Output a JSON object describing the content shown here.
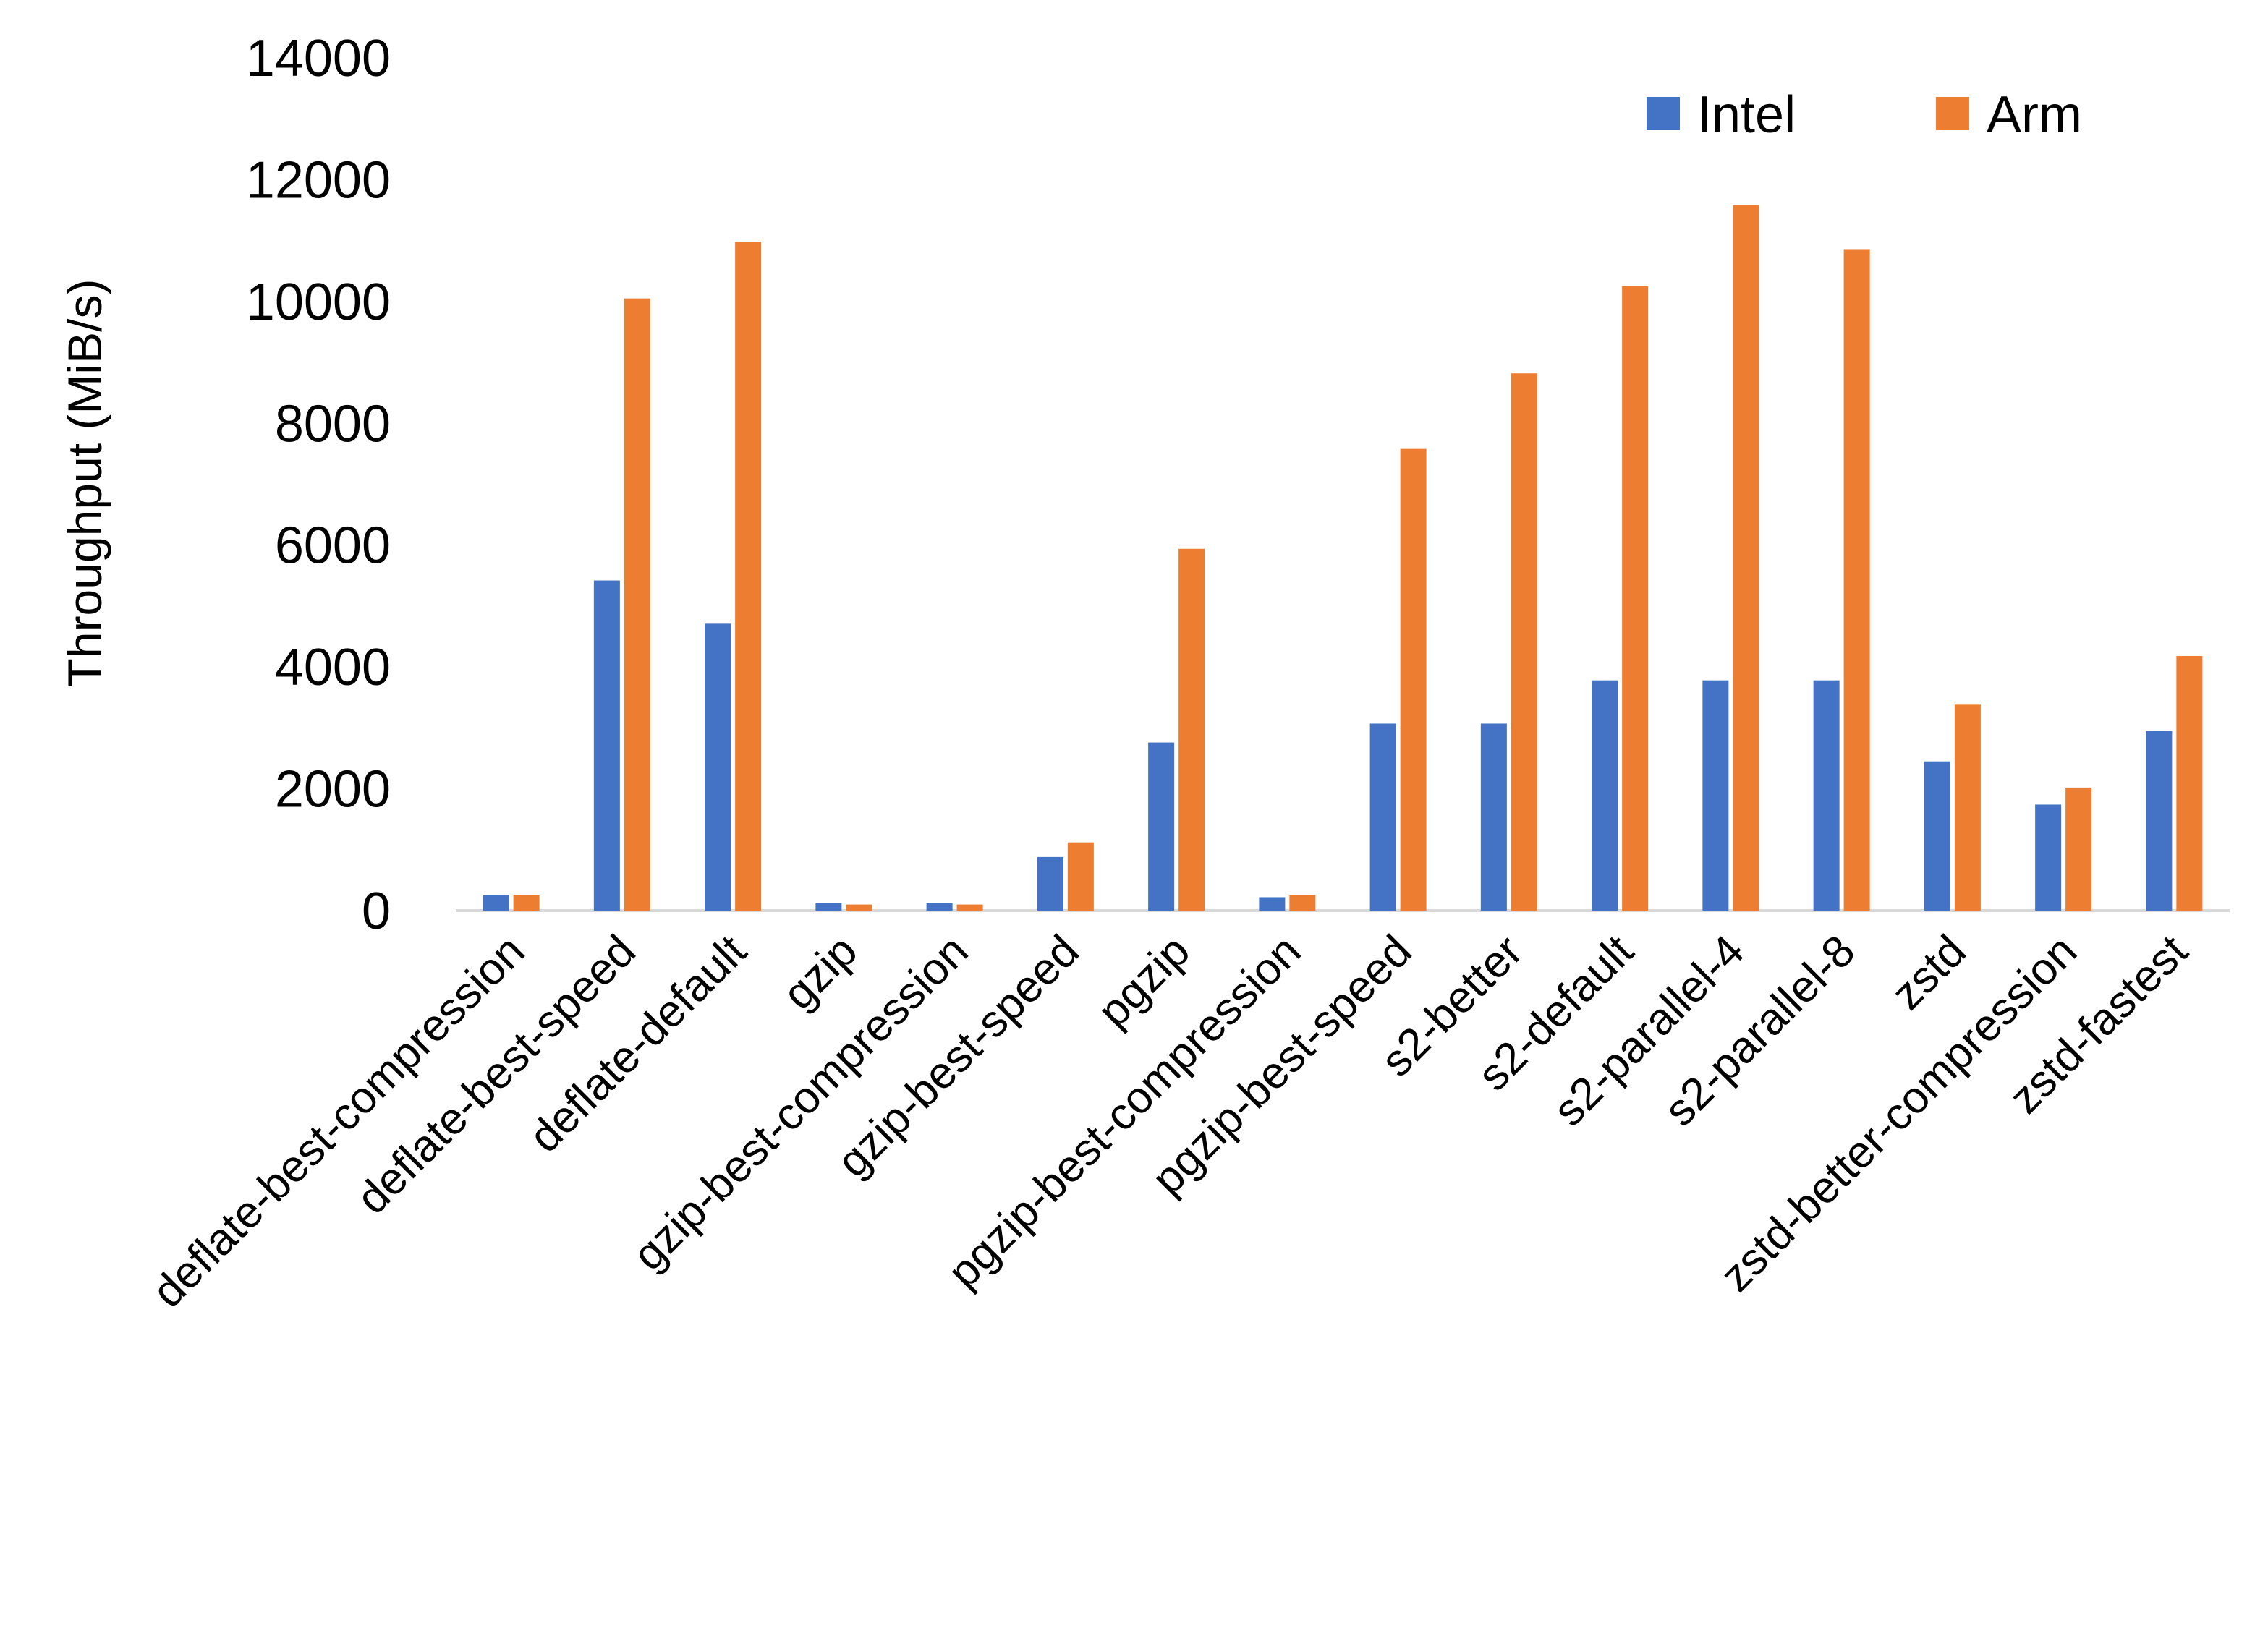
{
  "chart_data": {
    "type": "bar",
    "title": "",
    "xlabel": "",
    "ylabel": "Throughput (MiB/s)",
    "ylim": [
      0,
      14000
    ],
    "yticks": [
      "0",
      "2000",
      "4000",
      "6000",
      "8000",
      "10000",
      "12000",
      "14000"
    ],
    "grid": false,
    "legend_position": "top-right",
    "categories": [
      "deflate-best-compression",
      "deflate-best-speed",
      "deflate-default",
      "gzip",
      "gzip-best-compression",
      "gzip-best-speed",
      "pgzip",
      "pgzip-best-compression",
      "pgzip-best-speed",
      "s2-better",
      "s2-default",
      "s2-parallel-4",
      "s2-parallel-8",
      "zstd",
      "zstd-better-compression",
      "zstd-fastest"
    ],
    "series": [
      {
        "name": "Intel",
        "color": "#4472C4",
        "values": [
          250,
          5420,
          4710,
          120,
          120,
          880,
          2760,
          220,
          3070,
          3070,
          3780,
          3780,
          3780,
          2450,
          1740,
          2950
        ]
      },
      {
        "name": "Arm",
        "color": "#ED7D31",
        "values": [
          250,
          10050,
          10980,
          100,
          100,
          1120,
          5940,
          250,
          7580,
          8820,
          10250,
          11580,
          10860,
          3380,
          2020,
          4180
        ]
      }
    ]
  }
}
